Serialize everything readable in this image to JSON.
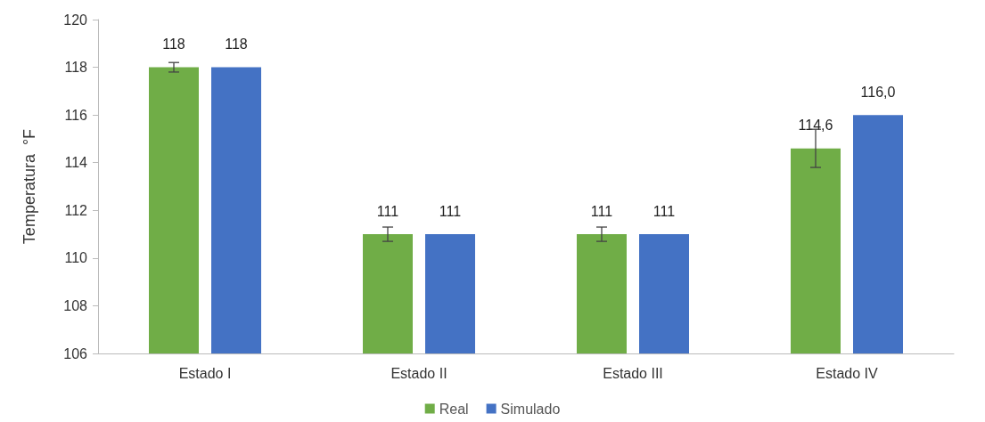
{
  "chart_data": {
    "type": "bar",
    "ylabel": "Temperatura  °F",
    "categories": [
      "Estado I",
      "Estado II",
      "Estado III",
      "Estado IV"
    ],
    "series": [
      {
        "name": "Real",
        "color": "#70ad47",
        "values": [
          118,
          111,
          111,
          114.6
        ],
        "errors": [
          0.2,
          0.3,
          0.3,
          0.8
        ],
        "value_labels": [
          "118",
          "111",
          "111",
          "114,6"
        ]
      },
      {
        "name": "Simulado",
        "color": "#4472c4",
        "values": [
          118,
          111,
          111,
          116.0
        ],
        "value_labels": [
          "118",
          "111",
          "111",
          "116,0"
        ]
      }
    ],
    "ylim": [
      106,
      120
    ],
    "yticks": [
      106,
      108,
      110,
      112,
      114,
      116,
      118,
      120
    ],
    "grid": false,
    "legend": "bottom"
  }
}
